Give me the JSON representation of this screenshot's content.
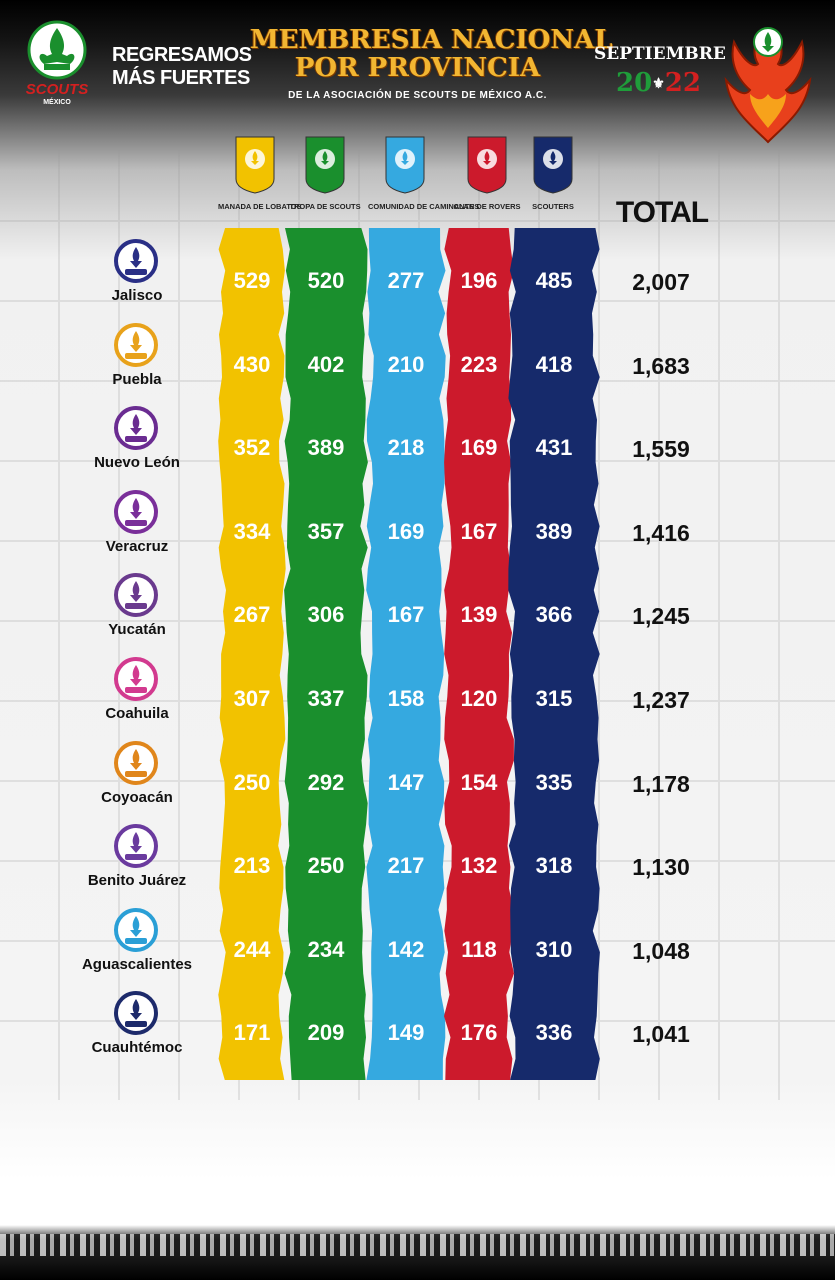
{
  "header": {
    "slogan": [
      "REGRESAMOS",
      "MÁS FUERTES"
    ],
    "title_line1": "MEMBRESIA NACIONAL",
    "title_line2": "POR PROVINCIA",
    "subtitle": "DE LA ASOCIACIÓN DE SCOUTS DE MÉXICO A.C.",
    "month": "SEPTIEMBRE",
    "year_left": "20",
    "year_right": "22",
    "logo_wordmark": "SCOUTS",
    "logo_country": "MÉXICO"
  },
  "sections": [
    {
      "label": "MANADA DE LOBATOS",
      "color": "#f2c200"
    },
    {
      "label": "TROPA DE SCOUTS",
      "color": "#1a8f2d"
    },
    {
      "label": "COMUNIDAD DE CAMINANTES",
      "color": "#35a9e0"
    },
    {
      "label": "CLAN DE ROVERS",
      "color": "#cc1a2c"
    },
    {
      "label": "SCOUTERS",
      "color": "#162a6b"
    }
  ],
  "total_label": "TOTAL",
  "rows": [
    {
      "name": "Jalisco",
      "values": [
        "529",
        "520",
        "277",
        "196",
        "485"
      ],
      "total": "2,007"
    },
    {
      "name": "Puebla",
      "values": [
        "430",
        "402",
        "210",
        "223",
        "418"
      ],
      "total": "1,683"
    },
    {
      "name": "Nuevo León",
      "values": [
        "352",
        "389",
        "218",
        "169",
        "431"
      ],
      "total": "1,559"
    },
    {
      "name": "Veracruz",
      "values": [
        "334",
        "357",
        "169",
        "167",
        "389"
      ],
      "total": "1,416"
    },
    {
      "name": "Yucatán",
      "values": [
        "267",
        "306",
        "167",
        "139",
        "366"
      ],
      "total": "1,245"
    },
    {
      "name": "Coahuila",
      "values": [
        "307",
        "337",
        "158",
        "120",
        "315"
      ],
      "total": "1,237"
    },
    {
      "name": "Coyoacán",
      "values": [
        "250",
        "292",
        "147",
        "154",
        "335"
      ],
      "total": "1,178"
    },
    {
      "name": "Benito Juárez",
      "values": [
        "213",
        "250",
        "217",
        "132",
        "318"
      ],
      "total": "1,130"
    },
    {
      "name": "Aguascalientes",
      "values": [
        "244",
        "234",
        "142",
        "118",
        "310"
      ],
      "total": "1,048"
    },
    {
      "name": "Cuauhtémoc",
      "values": [
        "171",
        "209",
        "149",
        "176",
        "336"
      ],
      "total": "1,041"
    }
  ]
}
